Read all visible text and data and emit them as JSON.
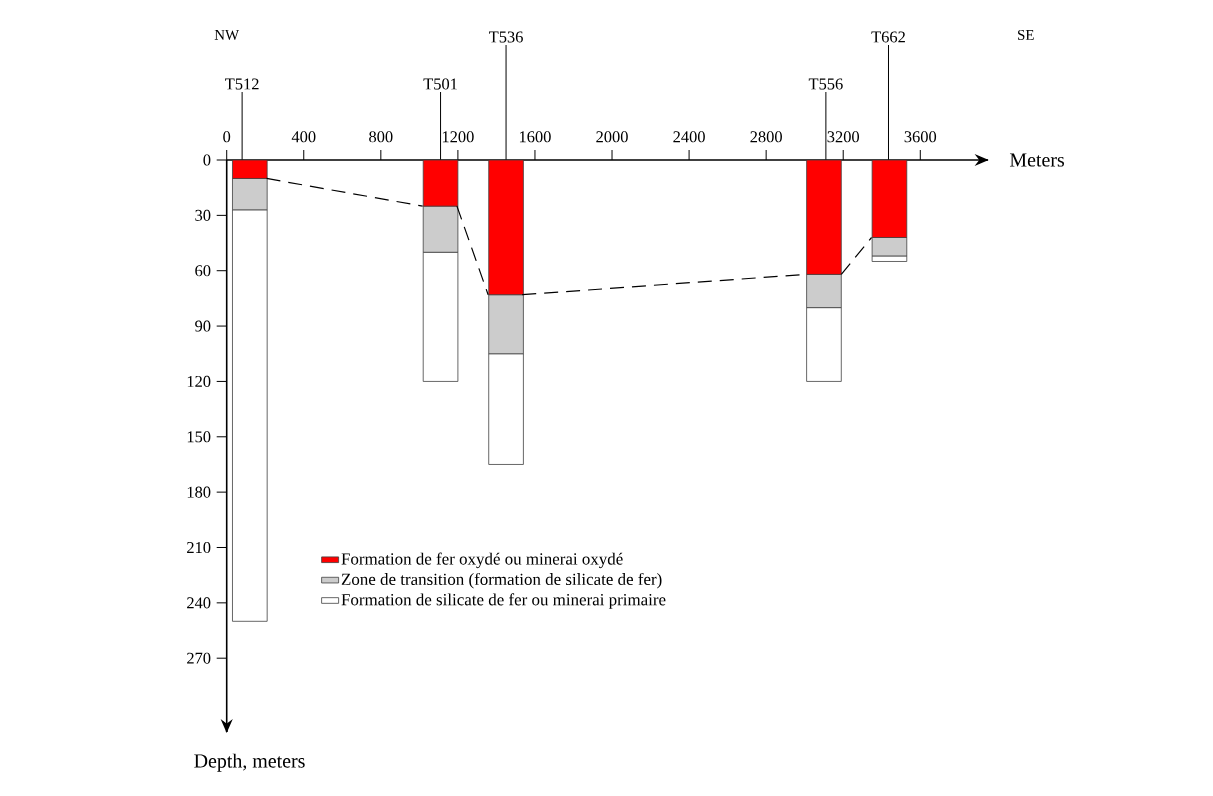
{
  "chart_data": {
    "type": "bar",
    "stacked": true,
    "xlabel": "Meters",
    "ylabel": "Depth, meters",
    "x": [
      120,
      1110,
      1450,
      3100,
      3440
    ],
    "xlim": [
      0,
      3950
    ],
    "xticks": [
      0,
      400,
      800,
      1200,
      1600,
      2000,
      2400,
      2800,
      3200,
      3600
    ],
    "ylim": [
      310,
      0
    ],
    "yticks": [
      0,
      30,
      60,
      90,
      120,
      150,
      180,
      210,
      240,
      270
    ],
    "series": [
      {
        "name": "Formation de fer oxydé ou minerai oxydé",
        "color": "#ff0000",
        "values": [
          10,
          25,
          73,
          62,
          42
        ]
      },
      {
        "name": "Zone de transition (formation de silicate de fer)",
        "color": "#cccccc",
        "values": [
          17,
          25,
          32,
          18,
          10
        ]
      },
      {
        "name": "Formation de silicate de fer ou minerai primaire",
        "color": "#ffffff",
        "values": [
          223,
          70,
          60,
          40,
          3
        ]
      },
      {
        "type": "line",
        "color": "#000000",
        "line_style": "dashed",
        "x": [
          207,
          1017,
          1106,
          1195,
          1357,
          1446,
          1534,
          3006,
          3098,
          3190,
          3347
        ],
        "values": [
          10,
          25,
          null,
          25,
          73,
          null,
          73,
          62,
          null,
          62,
          42
        ]
      }
    ],
    "legend": "bottom",
    "annotations": [
      "NW",
      "SE",
      {
        "text": "T512",
        "x": 80,
        "y": 0
      },
      {
        "text": "T501",
        "x": 1110,
        "y": 0
      },
      {
        "text": "T536",
        "x": 1450,
        "y": 0
      },
      {
        "text": "T556",
        "x": 3110,
        "y": 0
      },
      {
        "text": "T662",
        "x": 3435,
        "y": 0
      }
    ]
  }
}
